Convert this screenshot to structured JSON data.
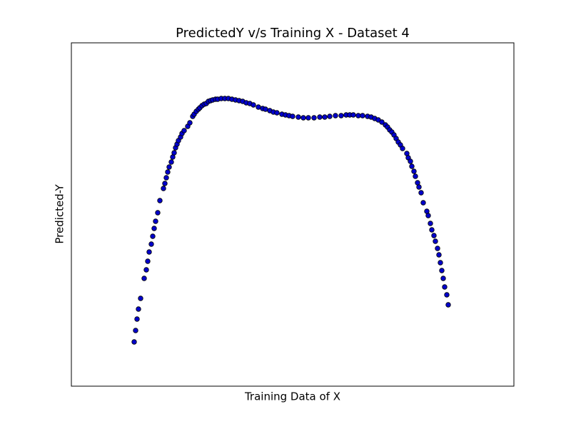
{
  "chart_data": {
    "type": "scatter",
    "title": "PredictedY v/s Training X - Dataset 4",
    "xlabel": "Training Data of X",
    "ylabel": "Predicted-Y",
    "color": "#0000cc",
    "edgecolor": "#000000",
    "xlim": [
      0,
      620
    ],
    "ylim": [
      0,
      481
    ],
    "x": [
      88,
      90,
      92,
      94,
      97,
      102,
      105,
      107,
      109,
      112,
      114,
      116,
      118,
      121,
      124,
      129,
      131,
      133,
      135,
      137,
      140,
      142,
      144,
      146,
      148,
      150,
      153,
      155,
      158,
      163,
      166,
      170,
      172,
      175,
      178,
      180,
      183,
      186,
      189,
      192,
      195,
      198,
      202,
      205,
      210,
      215,
      220,
      225,
      230,
      235,
      240,
      245,
      250,
      255,
      262,
      268,
      272,
      278,
      283,
      288,
      295,
      300,
      305,
      310,
      318,
      325,
      332,
      340,
      348,
      355,
      362,
      370,
      378,
      385,
      390,
      395,
      402,
      408,
      415,
      420,
      425,
      430,
      435,
      440,
      443,
      446,
      449,
      452,
      455,
      458,
      461,
      464,
      470,
      472,
      475,
      477,
      480,
      482,
      485,
      487,
      490,
      493,
      498,
      500,
      503,
      505,
      508,
      510,
      513,
      515,
      517,
      519,
      521,
      523,
      526,
      528
    ],
    "values": [
      62,
      78,
      94,
      108,
      123,
      151,
      163,
      175,
      188,
      199,
      210,
      221,
      231,
      243,
      260,
      277,
      284,
      292,
      300,
      307,
      314,
      321,
      327,
      334,
      339,
      344,
      349,
      354,
      358,
      364,
      369,
      378,
      381,
      385,
      388,
      390,
      393,
      395,
      396,
      399,
      400,
      401,
      402,
      402,
      403,
      403,
      403,
      402,
      401,
      400,
      399,
      397,
      396,
      394,
      391,
      389,
      388,
      386,
      384,
      383,
      381,
      380,
      379,
      378,
      377,
      376,
      376,
      376,
      377,
      377,
      378,
      379,
      379,
      380,
      380,
      380,
      379,
      379,
      378,
      377,
      375,
      373,
      370,
      366,
      363,
      359,
      356,
      352,
      347,
      342,
      338,
      333,
      326,
      320,
      315,
      308,
      301,
      294,
      285,
      279,
      271,
      257,
      245,
      239,
      228,
      219,
      211,
      203,
      193,
      184,
      173,
      162,
      151,
      139,
      128,
      114
    ]
  }
}
